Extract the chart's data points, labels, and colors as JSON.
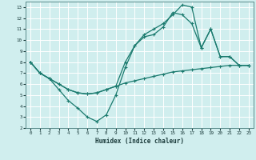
{
  "xlabel": "Humidex (Indice chaleur)",
  "bg_color": "#d0eeee",
  "grid_color": "#b8d8d8",
  "line_color": "#1a7a6e",
  "xlim": [
    -0.5,
    23.5
  ],
  "ylim": [
    2,
    13.5
  ],
  "xticks": [
    0,
    1,
    2,
    3,
    4,
    5,
    6,
    7,
    8,
    9,
    10,
    11,
    12,
    13,
    14,
    15,
    16,
    17,
    18,
    19,
    20,
    21,
    22,
    23
  ],
  "yticks": [
    2,
    3,
    4,
    5,
    6,
    7,
    8,
    9,
    10,
    11,
    12,
    13
  ],
  "line1_y": [
    8.0,
    7.0,
    6.5,
    6.0,
    5.5,
    5.2,
    5.1,
    5.2,
    5.5,
    5.8,
    6.1,
    6.3,
    6.5,
    6.7,
    6.9,
    7.1,
    7.2,
    7.3,
    7.4,
    7.5,
    7.6,
    7.7,
    7.7,
    7.7
  ],
  "line2_y": [
    8.0,
    7.0,
    6.5,
    5.5,
    4.5,
    3.8,
    3.0,
    2.6,
    3.2,
    5.0,
    7.5,
    9.5,
    10.5,
    11.0,
    11.5,
    12.3,
    13.2,
    13.0,
    9.3,
    11.0,
    8.5,
    8.5,
    7.7,
    7.7
  ],
  "line3_y": [
    8.0,
    7.0,
    6.5,
    6.0,
    5.5,
    5.2,
    5.1,
    5.2,
    5.5,
    5.8,
    8.0,
    9.5,
    10.3,
    10.5,
    11.2,
    12.5,
    12.3,
    11.5,
    9.3,
    11.0,
    8.5,
    8.5,
    7.7,
    7.7
  ]
}
